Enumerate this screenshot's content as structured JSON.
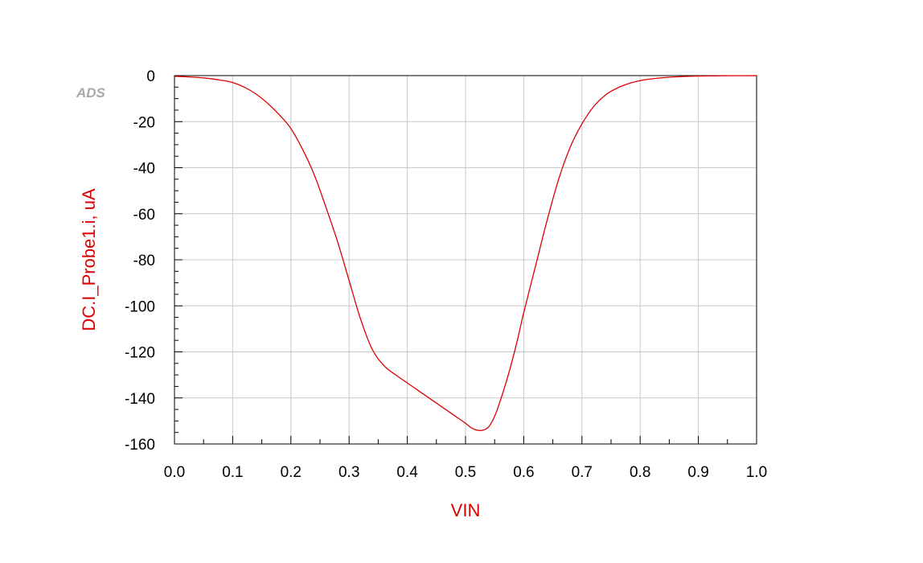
{
  "watermark": "ADS",
  "colors": {
    "series": "#dd0000",
    "grid": "#c8c8c8",
    "axis": "#000000"
  },
  "chart_data": {
    "type": "line",
    "xlabel": "VIN",
    "ylabel": "DC.I_Probe1.i, uA",
    "xlim": [
      0.0,
      1.0
    ],
    "ylim": [
      -160,
      0
    ],
    "x_ticks": [
      "0.0",
      "0.1",
      "0.2",
      "0.3",
      "0.4",
      "0.5",
      "0.6",
      "0.7",
      "0.8",
      "0.9",
      "1.0"
    ],
    "y_ticks": [
      "0",
      "-20",
      "-40",
      "-60",
      "-80",
      "-100",
      "-120",
      "-140",
      "-160"
    ],
    "grid": true,
    "series": [
      {
        "x": [
          0.0,
          0.02,
          0.05,
          0.08,
          0.1,
          0.12,
          0.14,
          0.16,
          0.18,
          0.2,
          0.22,
          0.24,
          0.26,
          0.28,
          0.3,
          0.32,
          0.34,
          0.36,
          0.38,
          0.4,
          0.42,
          0.44,
          0.46,
          0.48,
          0.5,
          0.51,
          0.52,
          0.53,
          0.54,
          0.55,
          0.56,
          0.57,
          0.58,
          0.59,
          0.6,
          0.62,
          0.64,
          0.66,
          0.68,
          0.7,
          0.72,
          0.74,
          0.76,
          0.78,
          0.8,
          0.82,
          0.85,
          0.88,
          0.9,
          0.93,
          0.96,
          1.0
        ],
        "y": [
          -0.3,
          -0.5,
          -1.0,
          -2.0,
          -3.0,
          -5.0,
          -8.0,
          -12.0,
          -17.0,
          -23.0,
          -32.0,
          -43.0,
          -57.0,
          -72.0,
          -89.0,
          -106.0,
          -119.0,
          -126.0,
          -130.0,
          -133.5,
          -137.0,
          -140.5,
          -144.0,
          -147.5,
          -151.0,
          -153.0,
          -154.0,
          -154.0,
          -152.5,
          -148.0,
          -141.0,
          -133.0,
          -124.0,
          -114.0,
          -103.0,
          -83.0,
          -63.0,
          -45.0,
          -31.0,
          -21.0,
          -13.5,
          -8.5,
          -5.5,
          -3.5,
          -2.2,
          -1.4,
          -0.7,
          -0.35,
          -0.2,
          -0.1,
          -0.05,
          -0.02
        ]
      }
    ]
  }
}
